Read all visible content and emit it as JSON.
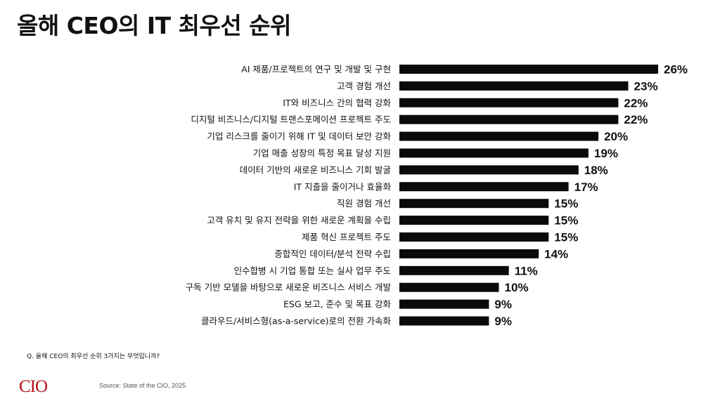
{
  "title": "올해 CEO의 IT 최우선 순위",
  "question": "Q. 올해 CEO의 최우선 순위 3가지는 무엇입니까?",
  "logo": "CIO",
  "source": "Source: State of the CIO, 2025",
  "colors": {
    "bar": "#0a0a0a",
    "logo": "#b5121b"
  },
  "chart_data": {
    "type": "bar",
    "orientation": "horizontal",
    "categories": [
      "AI 제품/프로젝트의 연구 및 개발 및 구현",
      "고객 경험 개선",
      "IT와 비즈니스 간의 협력 강화",
      "디지털 비즈니스/디지털 트랜스포메이션 프로젝트 주도",
      "기업 리스크를 줄이기 위해 IT 및 데이터 보안 강화",
      "기업 매출 성장의 특정 목표 달성 지원",
      "데이터 기반의 새로운 비즈니스 기회 발굴",
      "IT 지출을 줄이거나 효율화",
      "직원 경험 개선",
      "고객 유치 및 유지 전략을 위한 새로운 계획을 수립",
      "제품 혁신 프로젝트 주도",
      "종합적인 데이터/분석 전략 수립",
      "인수합병 시 기업 통합 또는 실사 업무 주도",
      "구독 기반 모델을 바탕으로 새로운 비즈니스 서비스 개발",
      "ESG 보고, 준수 및 목표 강화",
      "클라우드/서비스형(as-a-service)로의 전환 가속화"
    ],
    "values": [
      26,
      23,
      22,
      22,
      20,
      19,
      18,
      17,
      15,
      15,
      15,
      14,
      11,
      10,
      9,
      9
    ],
    "value_labels": [
      "26%",
      "23%",
      "22%",
      "22%",
      "20%",
      "19%",
      "18%",
      "17%",
      "15%",
      "15%",
      "15%",
      "14%",
      "11%",
      "10%",
      "9%",
      "9%"
    ],
    "unit": "%",
    "xlim": [
      0,
      26
    ],
    "grid": false,
    "legend": "none"
  }
}
